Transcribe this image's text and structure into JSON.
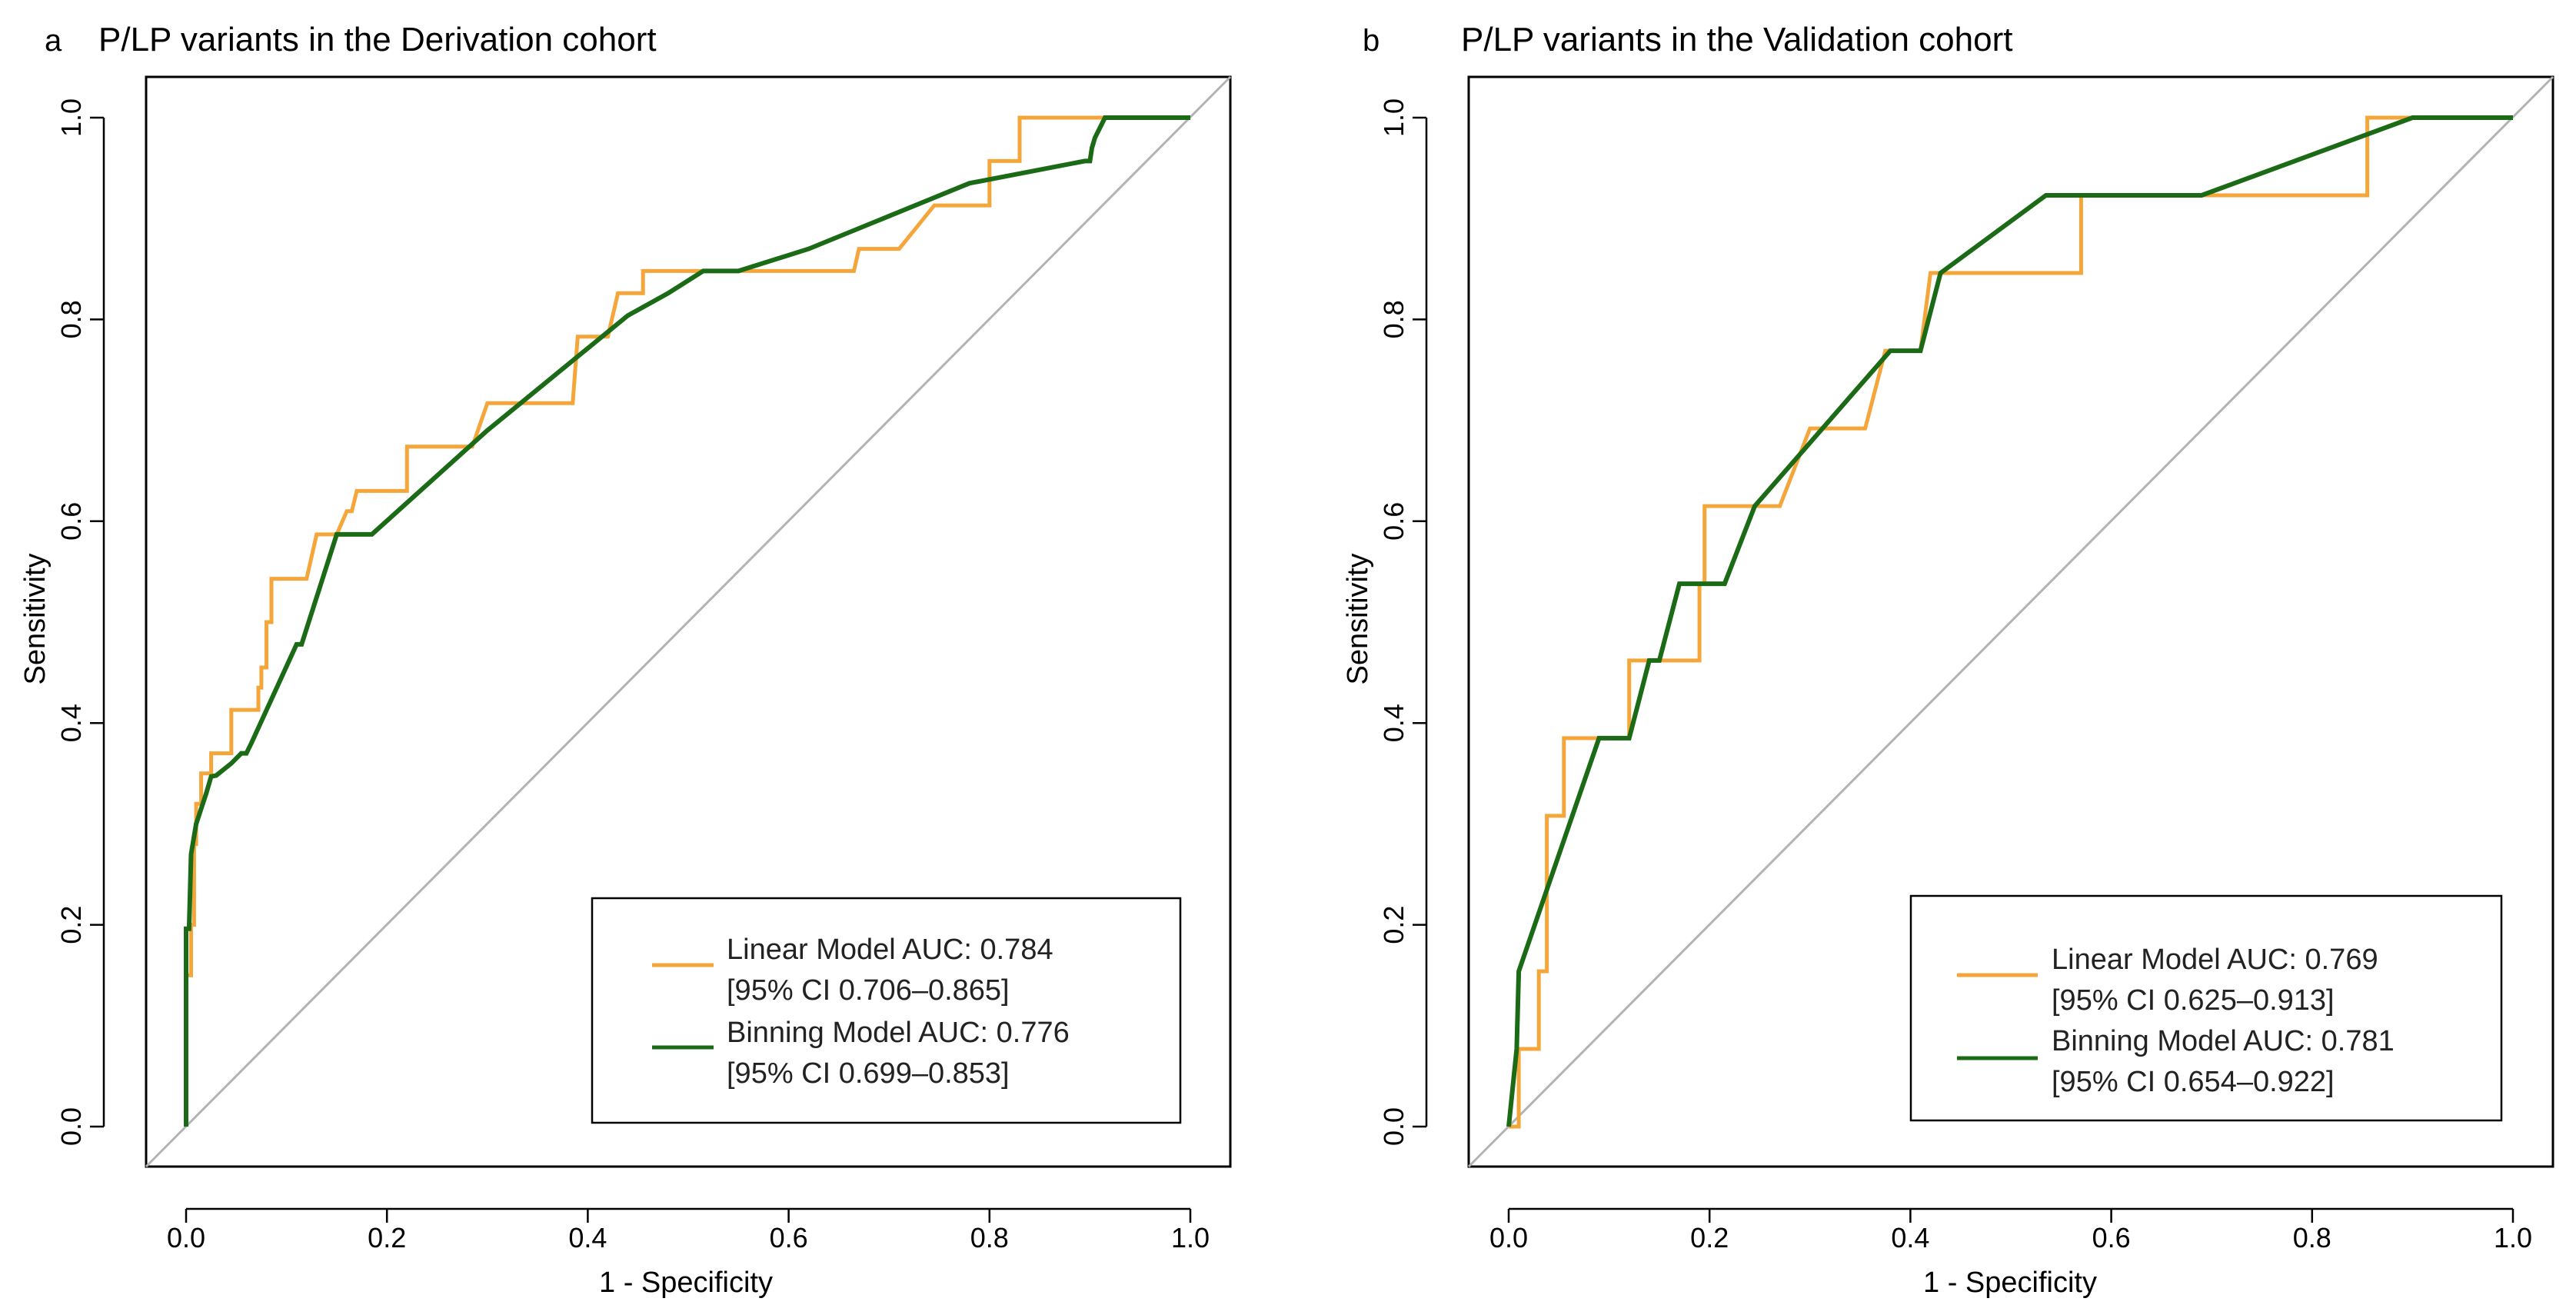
{
  "figure": {
    "panels": [
      {
        "letter": "a",
        "title": "P/LP variants in the Derivation cohort"
      },
      {
        "letter": "b",
        "title": "P/LP variants in the Validation cohort"
      }
    ]
  },
  "colors": {
    "linear": "#F4A63A",
    "binning": "#1B6A16",
    "diagonal": "#b3b3b3",
    "axis": "#000000",
    "frame": "#000000"
  },
  "chart_data": [
    {
      "type": "line",
      "panel": "a",
      "title": "P/LP variants in the Derivation cohort",
      "xlabel": "1 - Specificity",
      "ylabel": "Sensitivity",
      "xlim": [
        0,
        1
      ],
      "ylim": [
        0,
        1
      ],
      "xticks": [
        "0.0",
        "0.2",
        "0.4",
        "0.6",
        "0.8",
        "1.0"
      ],
      "yticks": [
        "0.0",
        "0.2",
        "0.4",
        "0.6",
        "0.8",
        "1.0"
      ],
      "diagonal": true,
      "legend": {
        "position": "bottom-right",
        "entries": [
          {
            "line1": "Linear Model AUC: 0.784",
            "line2": "[95% CI 0.706–0.865]",
            "series": "linear"
          },
          {
            "line1": "Binning Model AUC: 0.776",
            "line2": "[95% CI 0.699–0.853]",
            "series": "binning"
          }
        ]
      },
      "series": [
        {
          "name": "Linear Model",
          "key": "linear",
          "points": [
            [
              0,
              0
            ],
            [
              0,
              0.15
            ],
            [
              0.005,
              0.15
            ],
            [
              0.005,
              0.2
            ],
            [
              0.008,
              0.2
            ],
            [
              0.008,
              0.28
            ],
            [
              0.01,
              0.28
            ],
            [
              0.01,
              0.32
            ],
            [
              0.015,
              0.32
            ],
            [
              0.015,
              0.35
            ],
            [
              0.025,
              0.35
            ],
            [
              0.025,
              0.37
            ],
            [
              0.045,
              0.37
            ],
            [
              0.045,
              0.413
            ],
            [
              0.072,
              0.413
            ],
            [
              0.072,
              0.435
            ],
            [
              0.075,
              0.435
            ],
            [
              0.075,
              0.455
            ],
            [
              0.08,
              0.455
            ],
            [
              0.08,
              0.5
            ],
            [
              0.085,
              0.5
            ],
            [
              0.085,
              0.543
            ],
            [
              0.12,
              0.543
            ],
            [
              0.13,
              0.587
            ],
            [
              0.15,
              0.587
            ],
            [
              0.16,
              0.61
            ],
            [
              0.165,
              0.61
            ],
            [
              0.17,
              0.63
            ],
            [
              0.22,
              0.63
            ],
            [
              0.22,
              0.674
            ],
            [
              0.285,
              0.674
            ],
            [
              0.3,
              0.717
            ],
            [
              0.385,
              0.717
            ],
            [
              0.39,
              0.783
            ],
            [
              0.42,
              0.783
            ],
            [
              0.43,
              0.826
            ],
            [
              0.455,
              0.826
            ],
            [
              0.455,
              0.848
            ],
            [
              0.665,
              0.848
            ],
            [
              0.67,
              0.87
            ],
            [
              0.71,
              0.87
            ],
            [
              0.745,
              0.913
            ],
            [
              0.8,
              0.913
            ],
            [
              0.8,
              0.957
            ],
            [
              0.83,
              0.957
            ],
            [
              0.83,
              1.0
            ],
            [
              1,
              1
            ]
          ]
        },
        {
          "name": "Binning Model",
          "key": "binning",
          "points": [
            [
              0,
              0
            ],
            [
              0,
              0.196
            ],
            [
              0.003,
              0.196
            ],
            [
              0.005,
              0.27
            ],
            [
              0.01,
              0.3
            ],
            [
              0.015,
              0.315
            ],
            [
              0.02,
              0.33
            ],
            [
              0.025,
              0.347
            ],
            [
              0.03,
              0.348
            ],
            [
              0.045,
              0.36
            ],
            [
              0.055,
              0.37
            ],
            [
              0.06,
              0.37
            ],
            [
              0.065,
              0.38
            ],
            [
              0.11,
              0.478
            ],
            [
              0.115,
              0.478
            ],
            [
              0.15,
              0.587
            ],
            [
              0.185,
              0.587
            ],
            [
              0.3,
              0.69
            ],
            [
              0.44,
              0.804
            ],
            [
              0.48,
              0.826
            ],
            [
              0.515,
              0.848
            ],
            [
              0.55,
              0.848
            ],
            [
              0.62,
              0.87
            ],
            [
              0.78,
              0.935
            ],
            [
              0.895,
              0.957
            ],
            [
              0.9,
              0.957
            ],
            [
              0.902,
              0.97
            ],
            [
              0.905,
              0.98
            ],
            [
              0.915,
              1.0
            ],
            [
              1,
              1
            ]
          ]
        }
      ]
    },
    {
      "type": "line",
      "panel": "b",
      "title": "P/LP variants in the Validation cohort",
      "xlabel": "1 - Specificity",
      "ylabel": "Sensitivity",
      "xlim": [
        0,
        1
      ],
      "ylim": [
        0,
        1
      ],
      "xticks": [
        "0.0",
        "0.2",
        "0.4",
        "0.6",
        "0.8",
        "1.0"
      ],
      "yticks": [
        "0.0",
        "0.2",
        "0.4",
        "0.6",
        "0.8",
        "1.0"
      ],
      "diagonal": true,
      "legend": {
        "position": "bottom-right",
        "entries": [
          {
            "line1": "Linear Model AUC: 0.769",
            "line2": "[95% CI 0.625–0.913]",
            "series": "linear"
          },
          {
            "line1": "Binning Model AUC: 0.781",
            "line2": "[95% CI 0.654–0.922]",
            "series": "binning"
          }
        ]
      },
      "series": [
        {
          "name": "Linear Model",
          "key": "linear",
          "points": [
            [
              0,
              0
            ],
            [
              0.01,
              0
            ],
            [
              0.01,
              0.077
            ],
            [
              0.03,
              0.077
            ],
            [
              0.03,
              0.154
            ],
            [
              0.038,
              0.154
            ],
            [
              0.038,
              0.308
            ],
            [
              0.055,
              0.308
            ],
            [
              0.055,
              0.385
            ],
            [
              0.12,
              0.385
            ],
            [
              0.12,
              0.462
            ],
            [
              0.19,
              0.462
            ],
            [
              0.19,
              0.538
            ],
            [
              0.195,
              0.538
            ],
            [
              0.195,
              0.615
            ],
            [
              0.27,
              0.615
            ],
            [
              0.3,
              0.692
            ],
            [
              0.355,
              0.692
            ],
            [
              0.375,
              0.769
            ],
            [
              0.41,
              0.769
            ],
            [
              0.42,
              0.846
            ],
            [
              0.57,
              0.846
            ],
            [
              0.57,
              0.923
            ],
            [
              0.855,
              0.923
            ],
            [
              0.855,
              1.0
            ],
            [
              1,
              1
            ]
          ]
        },
        {
          "name": "Binning Model",
          "key": "binning",
          "points": [
            [
              0,
              0
            ],
            [
              0.008,
              0.077
            ],
            [
              0.01,
              0.154
            ],
            [
              0.09,
              0.385
            ],
            [
              0.12,
              0.385
            ],
            [
              0.14,
              0.462
            ],
            [
              0.15,
              0.462
            ],
            [
              0.17,
              0.538
            ],
            [
              0.215,
              0.538
            ],
            [
              0.245,
              0.615
            ],
            [
              0.38,
              0.769
            ],
            [
              0.41,
              0.769
            ],
            [
              0.43,
              0.846
            ],
            [
              0.535,
              0.923
            ],
            [
              0.69,
              0.923
            ],
            [
              0.9,
              1.0
            ],
            [
              1,
              1
            ]
          ]
        }
      ]
    }
  ]
}
